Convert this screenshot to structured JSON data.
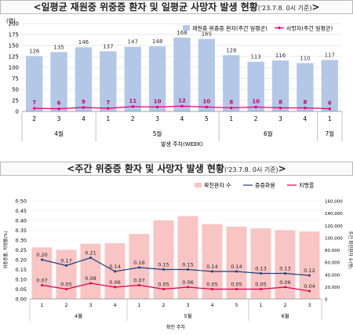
{
  "top_panel": {
    "title": "<일평균 재원중 위중증 환자 및 일평균 사망자 발생 현황",
    "note": "('23.7.8. 0시 기준)",
    "close": ">"
  },
  "bottom_panel": {
    "title": "<주간 위중증 환자 및 사망자 발생 현황",
    "note": "('23.7.8. 0시 기준)",
    "close": ">"
  },
  "chart_data": [
    {
      "type": "bar",
      "title": "",
      "ylabel": "(명)",
      "xlabel": "발생 주차(WEEK)",
      "ylim": [
        0,
        200
      ],
      "yticks": [
        0,
        25,
        50,
        75,
        100,
        125,
        150,
        175,
        200
      ],
      "categories": [
        "2",
        "3",
        "4",
        "1",
        "2",
        "3",
        "4",
        "5",
        "1",
        "2",
        "3",
        "4",
        "1"
      ],
      "month_groups": [
        {
          "label": "4월",
          "count": 3
        },
        {
          "label": "5월",
          "count": 5
        },
        {
          "label": "6월",
          "count": 4
        },
        {
          "label": "7월",
          "count": 1
        }
      ],
      "legend_position": "top-right",
      "series": [
        {
          "name": "재원중 위중증 환자(주간 일평균)",
          "kind": "bar",
          "color": "#b4c7e7",
          "values": [
            126,
            135,
            146,
            137,
            147,
            148,
            168,
            165,
            128,
            113,
            116,
            110,
            117
          ]
        },
        {
          "name": "사망자(주간 일평균)",
          "kind": "line",
          "color": "#e6007e",
          "values": [
            7,
            6,
            9,
            7,
            11,
            10,
            12,
            10,
            8,
            10,
            8,
            8,
            6
          ]
        }
      ]
    },
    {
      "type": "bar",
      "title": "",
      "xlabel": "확진 주차",
      "ylabel_left": "위중증률, 치명률(%)",
      "ylabel_right": "주간 확진환자 수(명)",
      "ylim_left": [
        0,
        0.5
      ],
      "ylim_right": [
        0,
        160000
      ],
      "yticks_left": [
        "0.00",
        "0.05",
        "0.10",
        "0.15",
        "0.20",
        "0.25",
        "0.30",
        "0.35",
        "0.40",
        "0.45",
        "0.50"
      ],
      "yticks_right": [
        "0",
        "20,000",
        "40,000",
        "60,000",
        "80,000",
        "100,000",
        "120,000",
        "140,000",
        "160,000"
      ],
      "categories": [
        "1",
        "2",
        "3",
        "4",
        "1",
        "2",
        "3",
        "4",
        "5",
        "1",
        "2",
        "3"
      ],
      "month_groups": [
        {
          "label": "4월",
          "count": 4
        },
        {
          "label": "5월",
          "count": 5
        },
        {
          "label": "6월",
          "count": 3
        }
      ],
      "legend_position": "top",
      "series": [
        {
          "name": "확진환자 수",
          "kind": "bar",
          "axis": "right",
          "color": "#f8c4c4",
          "values": [
            84000,
            80000,
            90000,
            91000,
            106000,
            128000,
            135000,
            122000,
            118000,
            115000,
            112000,
            110000
          ]
        },
        {
          "name": "중증화율",
          "kind": "line",
          "axis": "left",
          "color": "#1f3f7a",
          "values": [
            0.2,
            0.17,
            0.21,
            0.14,
            0.16,
            0.15,
            0.15,
            0.14,
            0.14,
            0.13,
            0.13,
            0.12
          ],
          "labels": [
            "0.20",
            "0.17",
            "0.21",
            "0.14",
            "0.16",
            "0.15",
            "0.15",
            "0.14",
            "0.14",
            "0.13",
            "0.13",
            "0.12"
          ]
        },
        {
          "name": "치명률",
          "kind": "line",
          "axis": "left",
          "color": "#d9004c",
          "values": [
            0.07,
            0.05,
            0.08,
            0.06,
            0.07,
            0.05,
            0.06,
            0.05,
            0.05,
            0.05,
            0.06,
            0.04
          ],
          "labels": [
            "0.07",
            "0.05",
            "0.08",
            "0.06",
            "0.07",
            "0.05",
            "0.06",
            "0.05",
            "0.05",
            "0.05",
            "0.06",
            "0.04"
          ]
        }
      ]
    }
  ]
}
